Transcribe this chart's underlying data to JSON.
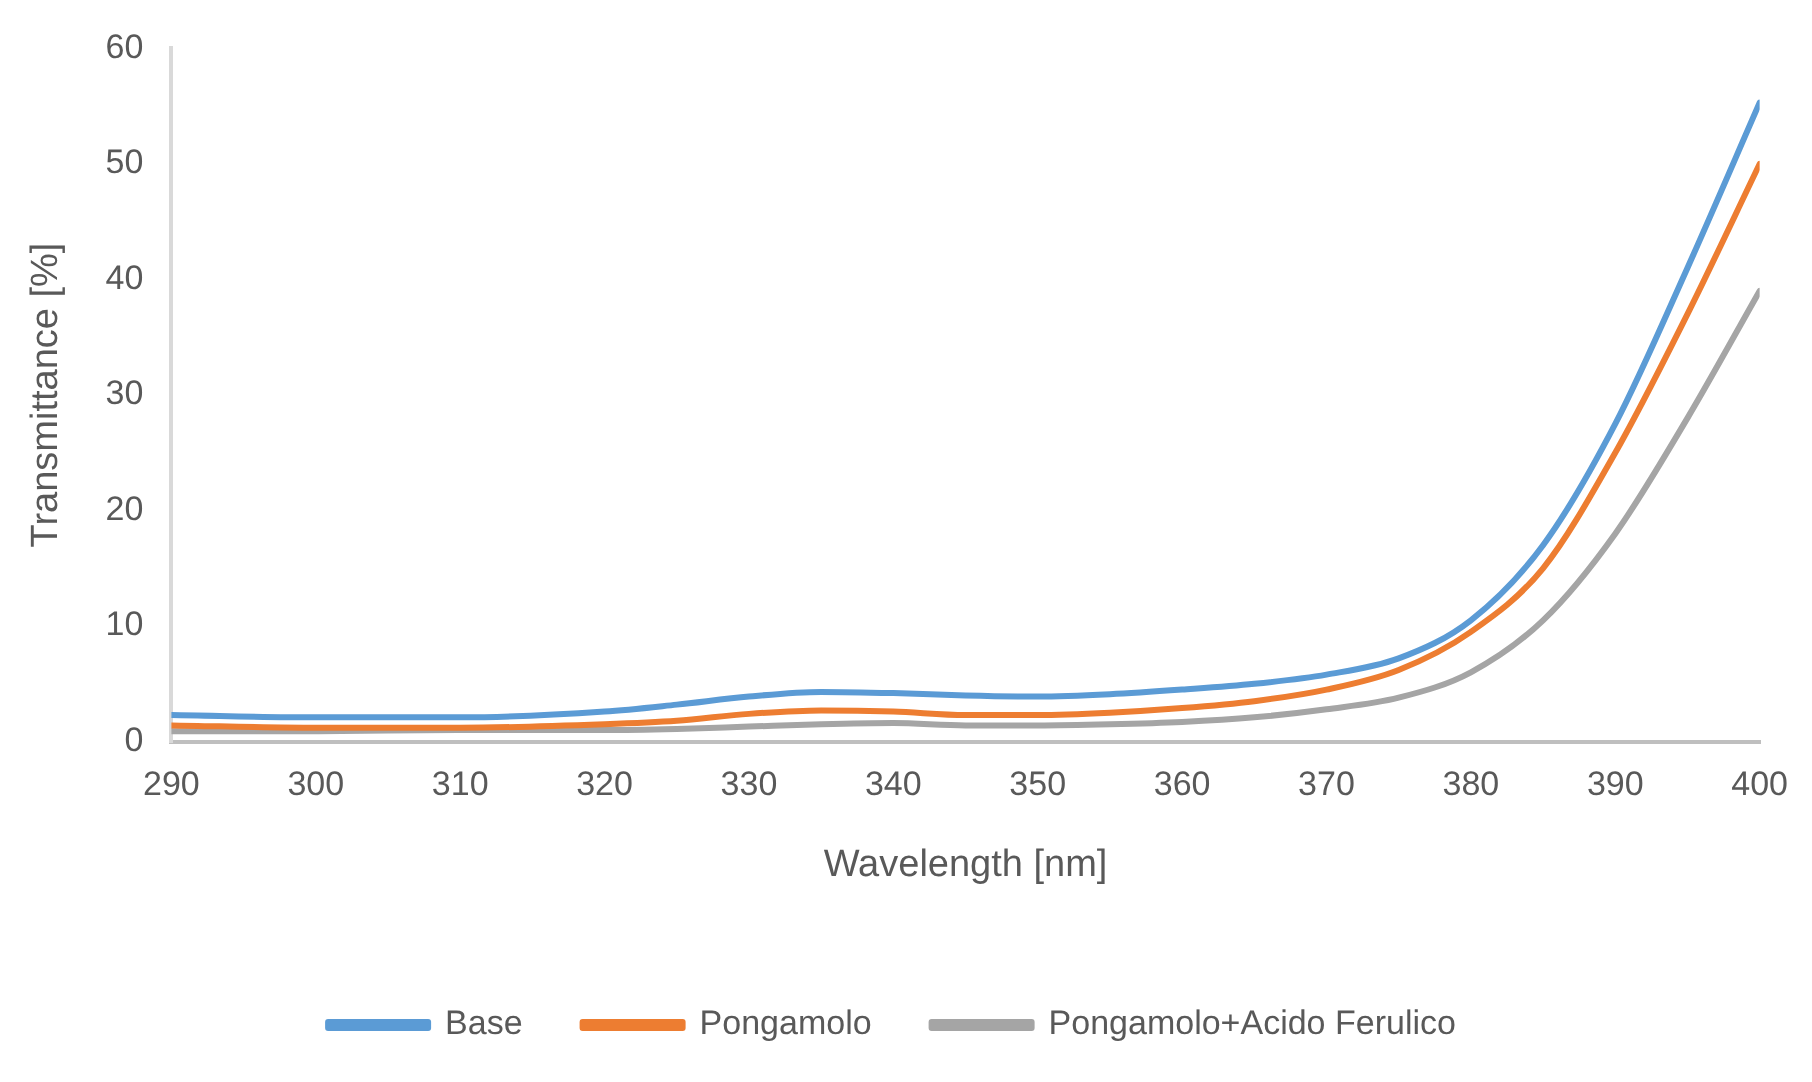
{
  "chart_data": {
    "type": "line",
    "xlabel": "Wavelength [nm]",
    "ylabel": "Transmittance [%]",
    "x": [
      290,
      300,
      310,
      320,
      325,
      330,
      335,
      340,
      345,
      350,
      355,
      360,
      365,
      370,
      375,
      380,
      385,
      390,
      395,
      400
    ],
    "xlim": [
      290,
      400
    ],
    "xticks": [
      290,
      300,
      310,
      320,
      330,
      340,
      350,
      360,
      370,
      380,
      390,
      400
    ],
    "ylim": [
      0,
      60
    ],
    "yticks": [
      0,
      10,
      20,
      30,
      40,
      50,
      60
    ],
    "grid": false,
    "legend": "bottom",
    "marker": "none",
    "line_style": "solid",
    "series": [
      {
        "name": "Base",
        "color": "#5b9bd5",
        "values": [
          2.3,
          2.1,
          2.1,
          2.6,
          3.2,
          3.9,
          4.3,
          4.2,
          4.0,
          3.9,
          4.1,
          4.5,
          5.0,
          5.8,
          7.2,
          10.5,
          17,
          27.5,
          41,
          55.3
        ]
      },
      {
        "name": "Pongamolo",
        "color": "#ed7d31",
        "values": [
          1.4,
          1.2,
          1.2,
          1.5,
          1.8,
          2.4,
          2.7,
          2.6,
          2.3,
          2.3,
          2.5,
          2.9,
          3.5,
          4.5,
          6.2,
          9.5,
          15,
          25,
          37,
          50
        ]
      },
      {
        "name": "Pongamolo+Acido Ferulico",
        "color": "#a5a5a5",
        "values": [
          0.9,
          0.9,
          1.0,
          1.0,
          1.1,
          1.3,
          1.5,
          1.6,
          1.4,
          1.4,
          1.5,
          1.7,
          2.1,
          2.8,
          3.8,
          6,
          10.5,
          18,
          28,
          39
        ]
      }
    ]
  }
}
